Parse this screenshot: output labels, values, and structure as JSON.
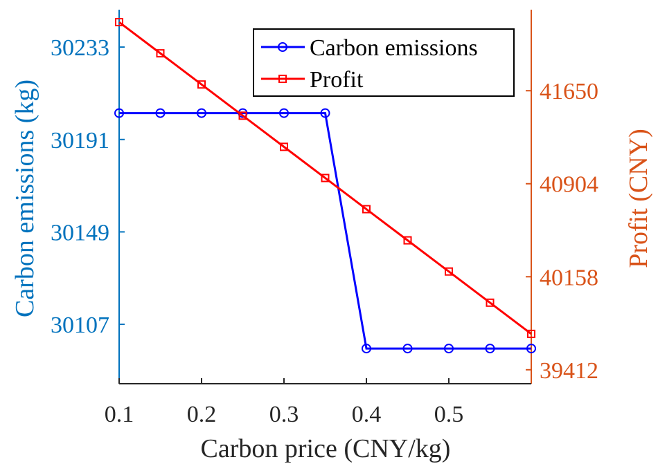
{
  "chart_data": {
    "type": "line",
    "xlabel": "Carbon price (CNY/kg)",
    "ylabel_left": "Carbon emissions (kg)",
    "ylabel_right": "Profit (CNY)",
    "x": [
      0.1,
      0.15,
      0.2,
      0.25,
      0.3,
      0.35,
      0.4,
      0.45,
      0.5,
      0.55,
      0.6
    ],
    "xlim": [
      0.1,
      0.6
    ],
    "xticks": [
      0.1,
      0.2,
      0.3,
      0.4,
      0.5
    ],
    "ylim_left": [
      30080,
      30250
    ],
    "yticks_left": [
      30107,
      30149,
      30191,
      30233
    ],
    "ylim_right": [
      39300,
      42300
    ],
    "yticks_right": [
      39412,
      40158,
      40904,
      41650
    ],
    "grid": false,
    "legend_position": "top-right",
    "series": [
      {
        "name": "Carbon emissions",
        "axis": "left",
        "color": "#0000FF",
        "marker": "circle",
        "values": [
          30203,
          30203,
          30203,
          30203,
          30203,
          30203,
          30096,
          30096,
          30096,
          30096,
          30096
        ]
      },
      {
        "name": "Profit",
        "axis": "right",
        "color": "#FF0000",
        "marker": "square",
        "values": [
          42200,
          41950,
          41700,
          41450,
          41200,
          40950,
          40700,
          40450,
          40200,
          39950,
          39700
        ]
      }
    ],
    "colors": {
      "left_axis": "#0072BD",
      "right_axis": "#D95319",
      "x_axis": "#262626"
    }
  }
}
